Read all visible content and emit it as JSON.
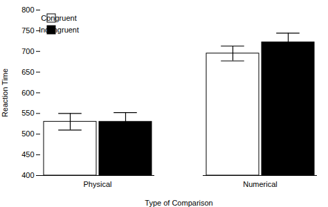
{
  "chart_data": {
    "type": "bar",
    "categories": [
      "Physical",
      "Numerical"
    ],
    "series": [
      {
        "name": "Congruent",
        "color": "white",
        "values": [
          530,
          695
        ],
        "errors": [
          20,
          18
        ]
      },
      {
        "name": "Incongruent",
        "color": "black",
        "values": [
          530,
          722
        ],
        "errors": [
          22,
          22
        ]
      }
    ],
    "xlabel": "Type of Comparison",
    "ylabel": "Reaction Time",
    "ylim": [
      400,
      800
    ],
    "yticks": [
      400,
      450,
      500,
      550,
      600,
      650,
      700,
      750,
      800
    ],
    "legend": "upper left",
    "grid": false
  }
}
